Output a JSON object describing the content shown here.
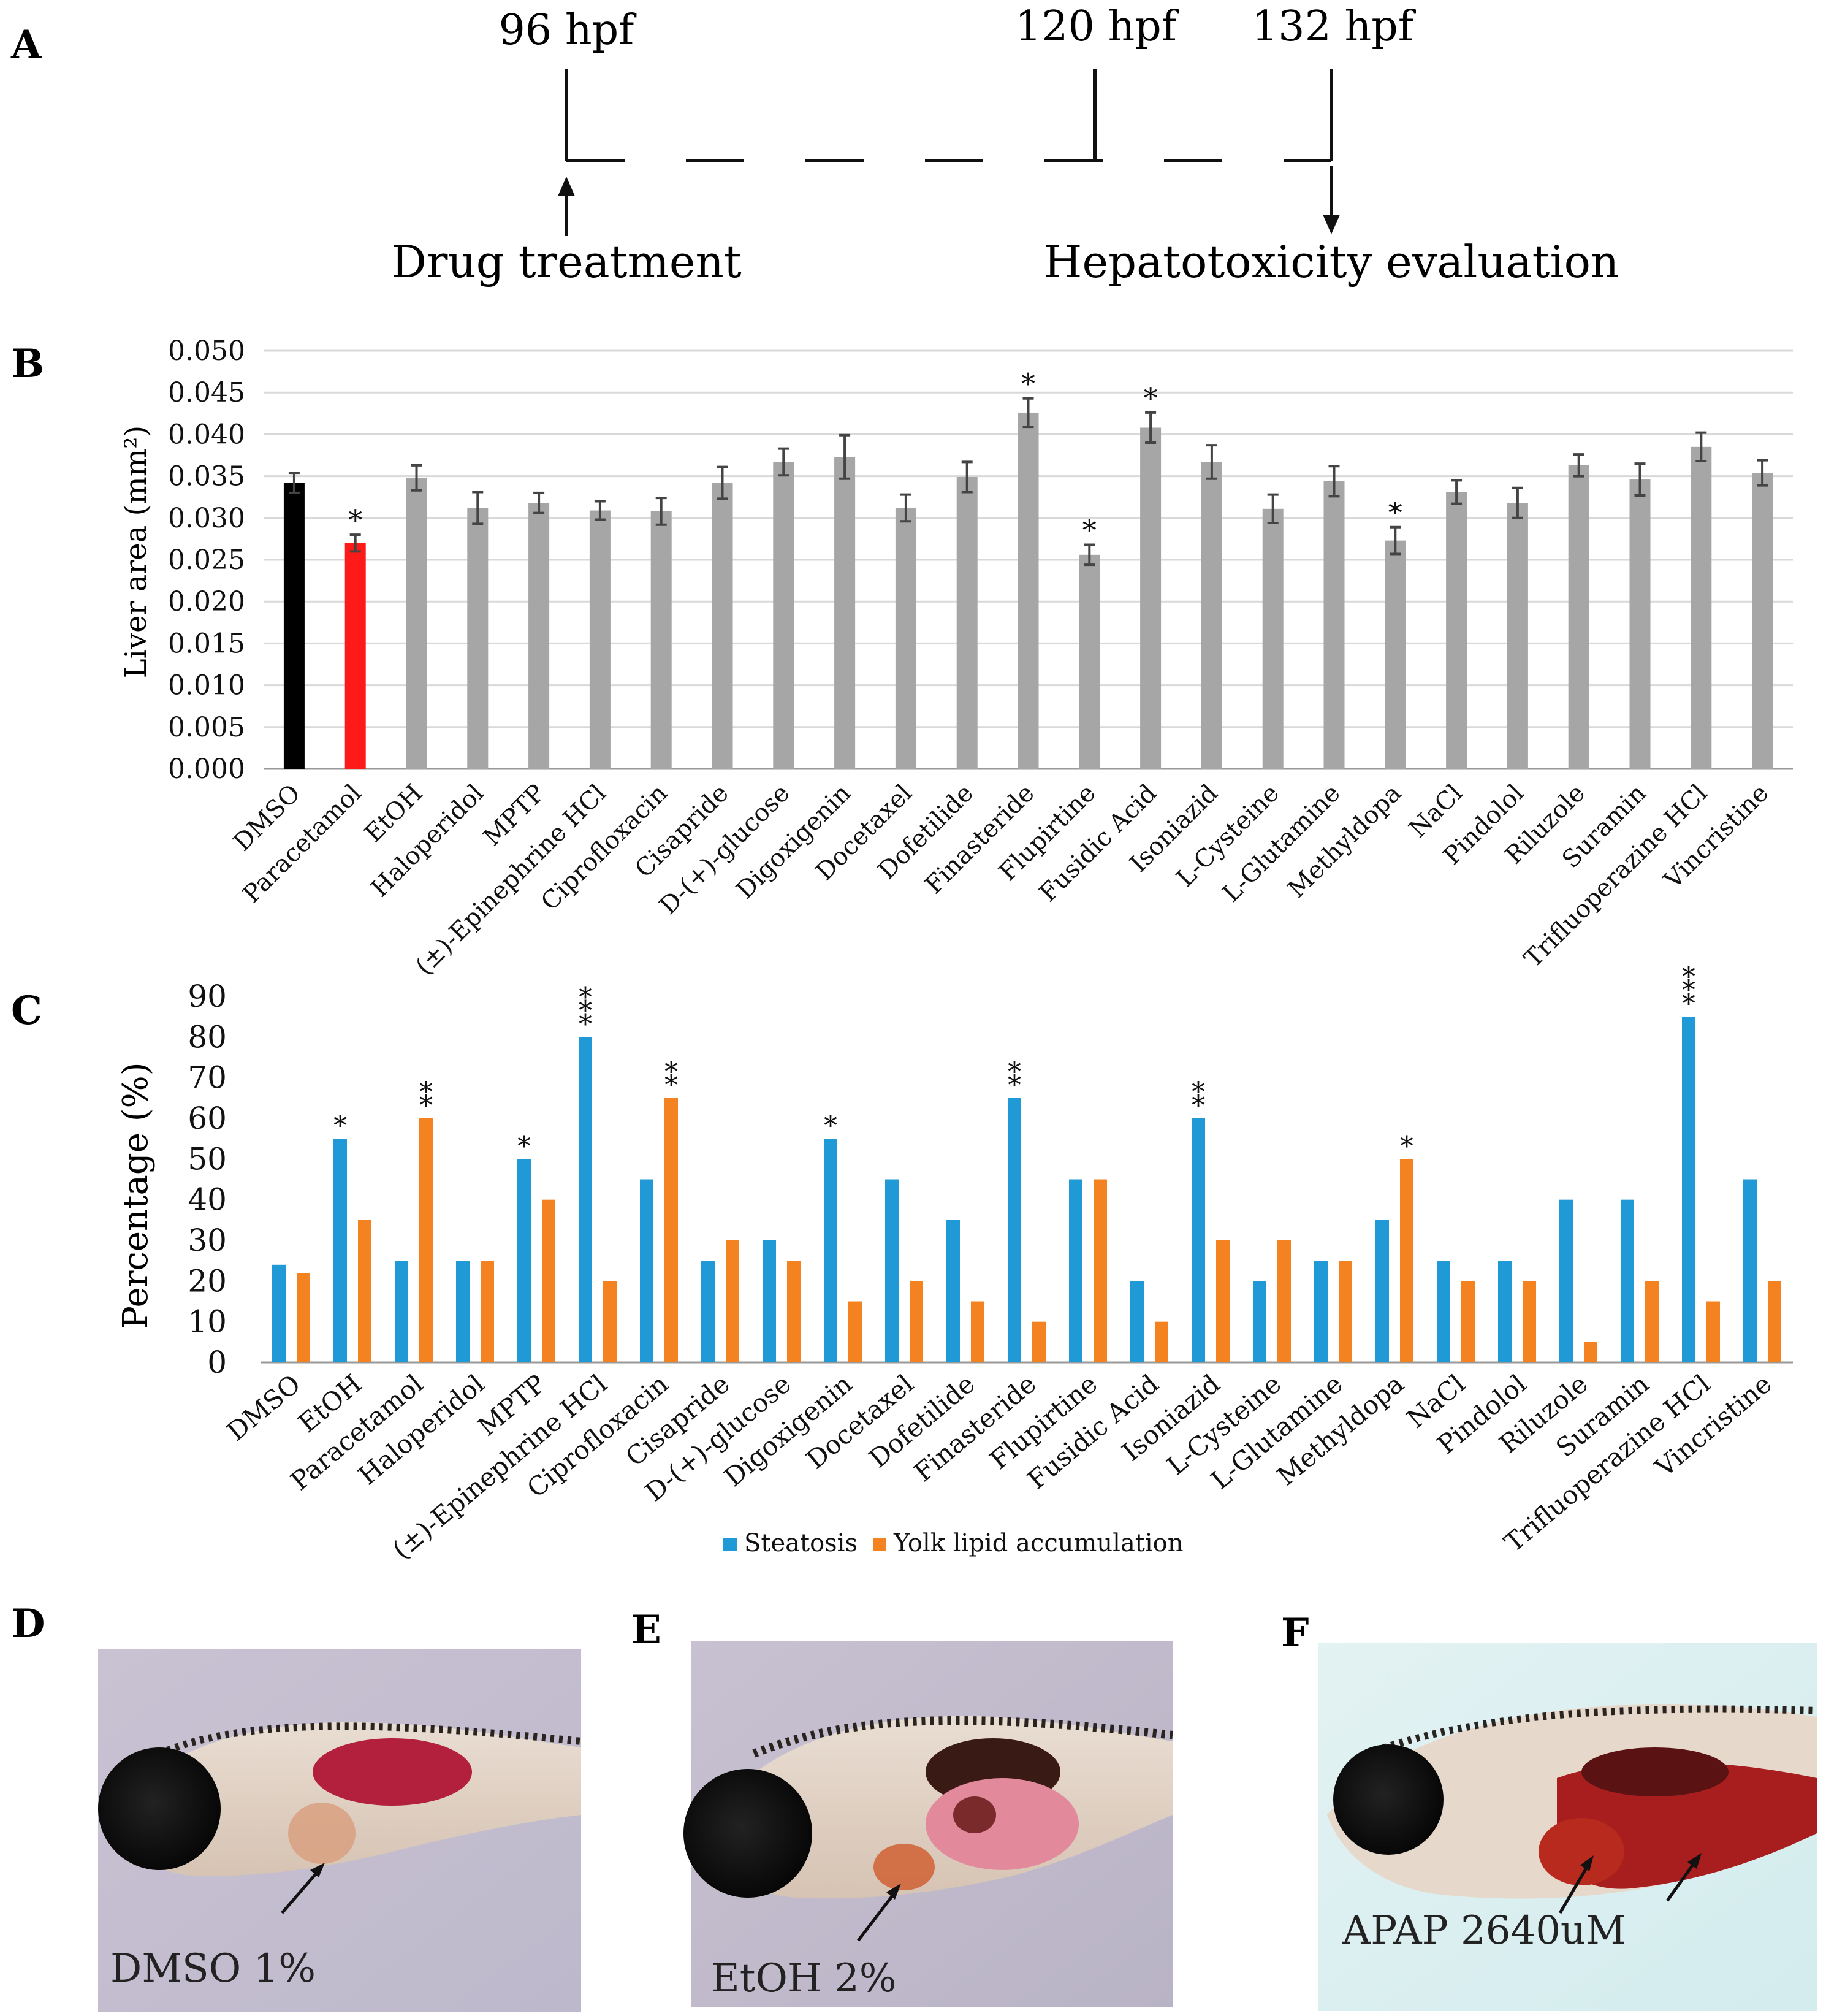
{
  "panels": {
    "A": "A",
    "B": "B",
    "C": "C",
    "D": "D",
    "E": "E",
    "F": "F"
  },
  "timeline": {
    "t1": "96 hpf",
    "t2": "120 hpf",
    "t3": "132 hpf",
    "start_label": "Drug treatment",
    "end_label": "Hepatotoxicity evaluation"
  },
  "chart_data": [
    {
      "type": "bar",
      "ylabel": "Liver area (mm²)",
      "ylim": [
        0,
        0.05
      ],
      "yticks": [
        "0.000",
        "0.005",
        "0.010",
        "0.015",
        "0.020",
        "0.025",
        "0.030",
        "0.035",
        "0.040",
        "0.045",
        "0.050"
      ],
      "grid": true,
      "categories": [
        "DMSO",
        "Paracetamol",
        "EtOH",
        "Haloperidol",
        "MPTP",
        "(±)-Epinephrine HCl",
        "Ciprofloxacin",
        "Cisapride",
        "D-(+)-glucose",
        "Digoxigenin",
        "Docetaxel",
        "Dofetilide",
        "Finasteride",
        "Flupirtine",
        "Fusidic Acid",
        "Isoniazid",
        "L-Cysteine",
        "L-Glutamine",
        "Methyldopa",
        "NaCl",
        "Pindolol",
        "Riluzole",
        "Suramin",
        "Trifluoperazine HCl",
        "Vincristine"
      ],
      "values": [
        0.0342,
        0.027,
        0.0348,
        0.0312,
        0.0318,
        0.0309,
        0.0308,
        0.0342,
        0.0367,
        0.0373,
        0.0312,
        0.0349,
        0.0426,
        0.0256,
        0.0408,
        0.0367,
        0.0311,
        0.0344,
        0.0273,
        0.0331,
        0.0318,
        0.0363,
        0.0346,
        0.0385,
        0.0354
      ],
      "errors": [
        0.0012,
        0.001,
        0.0015,
        0.0019,
        0.0012,
        0.0011,
        0.0016,
        0.0019,
        0.0016,
        0.0026,
        0.0016,
        0.0018,
        0.0017,
        0.0012,
        0.0018,
        0.002,
        0.0017,
        0.0018,
        0.0016,
        0.0014,
        0.0018,
        0.0013,
        0.0019,
        0.0017,
        0.0015
      ],
      "colors": {
        "DMSO": "#000000",
        "Paracetamol": "#ff1a1a",
        "default": "#a6a6a6"
      },
      "significance": {
        "Paracetamol": "*",
        "Finasteride": "*",
        "Flupirtine": "*",
        "Fusidic Acid": "*",
        "Methyldopa": "*"
      }
    },
    {
      "type": "bar",
      "ylabel": "Percentage (%)",
      "ylim": [
        0,
        90
      ],
      "yticks": [
        "0",
        "10",
        "20",
        "30",
        "40",
        "50",
        "60",
        "70",
        "80",
        "90"
      ],
      "categories": [
        "DMSO",
        "EtOH",
        "Paracetamol",
        "Haloperidol",
        "MPTP",
        "(±)-Epinephrine HCl",
        "Ciprofloxacin",
        "Cisapride",
        "D-(+)-glucose",
        "Digoxigenin",
        "Docetaxel",
        "Dofetilide",
        "Finasteride",
        "Flupirtine",
        "Fusidic Acid",
        "Isoniazid",
        "L-Cysteine",
        "L-Glutamine",
        "Methyldopa",
        "NaCl",
        "Pindolol",
        "Riluzole",
        "Suramin",
        "Trifluoperazine HCl",
        "Vincristine"
      ],
      "series": [
        {
          "name": "Steatosis",
          "color": "#1f9ad6",
          "values": [
            24,
            55,
            25,
            25,
            50,
            80,
            45,
            25,
            30,
            55,
            45,
            35,
            65,
            45,
            20,
            60,
            20,
            25,
            35,
            25,
            25,
            40,
            40,
            85,
            45
          ]
        },
        {
          "name": "Yolk lipid accumulation",
          "color": "#f58220",
          "values": [
            22,
            35,
            60,
            25,
            40,
            20,
            65,
            30,
            25,
            15,
            20,
            15,
            10,
            45,
            10,
            30,
            30,
            25,
            50,
            20,
            20,
            5,
            20,
            15,
            20
          ]
        }
      ],
      "significance": [
        {
          "category": "EtOH",
          "series": "Steatosis",
          "label": "*"
        },
        {
          "category": "Paracetamol",
          "series": "Yolk lipid accumulation",
          "label": "**"
        },
        {
          "category": "MPTP",
          "series": "Steatosis",
          "label": "*"
        },
        {
          "category": "(±)-Epinephrine HCl",
          "series": "Steatosis",
          "label": "***"
        },
        {
          "category": "Ciprofloxacin",
          "series": "Yolk lipid accumulation",
          "label": "**"
        },
        {
          "category": "Digoxigenin",
          "series": "Steatosis",
          "label": "*"
        },
        {
          "category": "Finasteride",
          "series": "Steatosis",
          "label": "**"
        },
        {
          "category": "Isoniazid",
          "series": "Steatosis",
          "label": "**"
        },
        {
          "category": "Methyldopa",
          "series": "Yolk lipid accumulation",
          "label": "*"
        },
        {
          "category": "Trifluoperazine HCl",
          "series": "Steatosis",
          "label": "***"
        }
      ],
      "legend": "bottom-center"
    }
  ],
  "images": {
    "D": "DMSO 1%",
    "E": "EtOH 2%",
    "F": "APAP 2640uM"
  }
}
